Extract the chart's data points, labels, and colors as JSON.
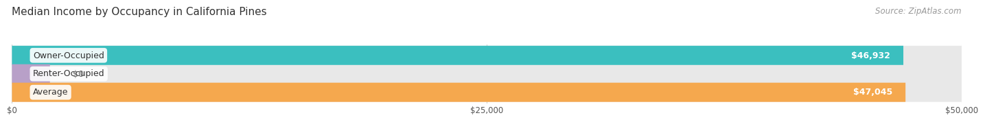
{
  "title": "Median Income by Occupancy in California Pines",
  "source": "Source: ZipAtlas.com",
  "categories": [
    "Owner-Occupied",
    "Renter-Occupied",
    "Average"
  ],
  "values": [
    46932,
    0,
    47045
  ],
  "bar_colors": [
    "#3bbfbf",
    "#b8a0c8",
    "#f5a84e"
  ],
  "bar_bg_color": "#e8e8e8",
  "value_labels": [
    "$46,932",
    "$0",
    "$47,045"
  ],
  "x_ticks": [
    0,
    25000,
    50000
  ],
  "x_tick_labels": [
    "$0",
    "$25,000",
    "$50,000"
  ],
  "xlim": [
    0,
    50000
  ],
  "title_fontsize": 11,
  "source_fontsize": 8.5,
  "label_fontsize": 9,
  "value_fontsize": 9,
  "background_color": "#ffffff"
}
